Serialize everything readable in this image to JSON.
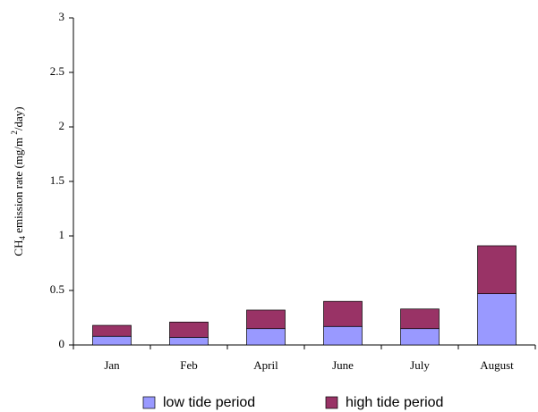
{
  "chart_data": {
    "type": "stacked-bar",
    "y_label": [
      "CH",
      "4",
      " emission rate  (mg/m ",
      "2",
      "/day)"
    ],
    "categories": [
      "Jan",
      "Feb",
      "April",
      "June",
      "July",
      "August"
    ],
    "series": [
      {
        "name": "low tide period",
        "color": "#9999ff",
        "values": [
          0.08,
          0.07,
          0.15,
          0.17,
          0.15,
          0.47
        ]
      },
      {
        "name": "high tide period",
        "color": "#993366",
        "values": [
          0.1,
          0.14,
          0.17,
          0.23,
          0.18,
          0.44
        ]
      }
    ],
    "ylim": [
      0,
      3
    ],
    "yticks": [
      0,
      0.5,
      1,
      1.5,
      2,
      2.5,
      3
    ],
    "grid": false,
    "legend": "bottom"
  }
}
